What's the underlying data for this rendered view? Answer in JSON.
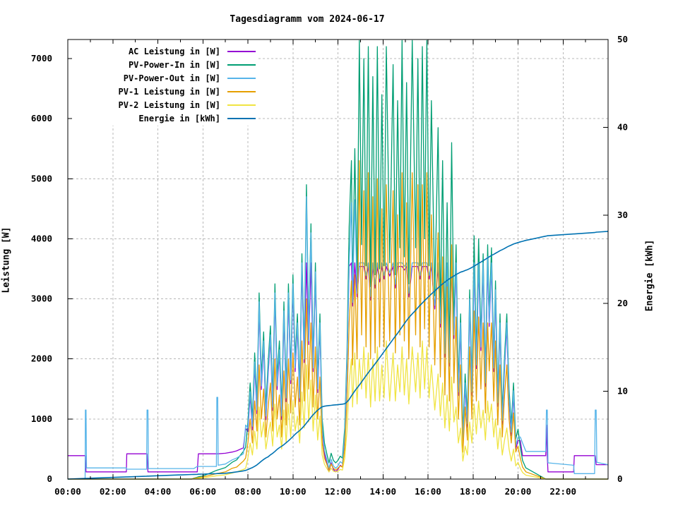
{
  "chart_data": {
    "type": "line",
    "title": "Tagesdiagramm vom 2024-06-17",
    "ylabel_left": "Leistung [W]",
    "ylabel_right": "Energie [kWh]",
    "xlim": [
      0,
      24
    ],
    "ylim_left": [
      0,
      7317
    ],
    "ylim_right": [
      0,
      50
    ],
    "grid": true,
    "legend_position": "top-left",
    "background": "#ffffff",
    "border_color": "#000000",
    "grid_color": "#b8b8b8",
    "x_tick_hours": [
      0,
      2,
      4,
      6,
      8,
      10,
      12,
      14,
      16,
      18,
      20,
      22
    ],
    "x_tick_labels": [
      "00:00",
      "02:00",
      "04:00",
      "06:00",
      "08:00",
      "10:00",
      "12:00",
      "14:00",
      "16:00",
      "18:00",
      "20:00",
      "22:00"
    ],
    "x_minor_tick_hours": [
      1,
      3,
      5,
      7,
      9,
      11,
      13,
      15,
      17,
      19,
      21,
      23
    ],
    "x_grid_hours": [
      2,
      4,
      6,
      8,
      10,
      12,
      14,
      16,
      18,
      20,
      22,
      24
    ],
    "y_left_ticks": [
      0,
      1000,
      2000,
      3000,
      4000,
      5000,
      6000,
      7000
    ],
    "y_right_ticks": [
      0,
      10,
      20,
      30,
      40,
      50
    ],
    "t": [
      0,
      0.77,
      0.78,
      0.81,
      0.83,
      2.6,
      2.62,
      2.65,
      3.5,
      3.52,
      3.56,
      3.58,
      5.5,
      5.6,
      5.75,
      5.8,
      6.0,
      6.3,
      6.6,
      6.62,
      6.66,
      6.68,
      7.0,
      7.3,
      7.5,
      7.8,
      7.9,
      8.0,
      8.1,
      8.2,
      8.3,
      8.4,
      8.5,
      8.6,
      8.7,
      8.8,
      8.9,
      9.0,
      9.1,
      9.2,
      9.3,
      9.4,
      9.5,
      9.6,
      9.7,
      9.8,
      9.9,
      10.0,
      10.1,
      10.2,
      10.3,
      10.4,
      10.5,
      10.6,
      10.7,
      10.8,
      10.9,
      11.0,
      11.1,
      11.2,
      11.3,
      11.4,
      11.5,
      11.6,
      11.7,
      11.8,
      11.9,
      12.0,
      12.1,
      12.2,
      12.3,
      12.4,
      12.5,
      12.6,
      12.65,
      12.75,
      12.85,
      12.95,
      13.05,
      13.15,
      13.25,
      13.35,
      13.45,
      13.55,
      13.65,
      13.75,
      13.85,
      13.95,
      14.05,
      14.15,
      14.3,
      14.45,
      14.55,
      14.65,
      14.75,
      14.85,
      14.95,
      15.05,
      15.15,
      15.3,
      15.45,
      15.55,
      15.65,
      15.75,
      15.85,
      15.95,
      16.05,
      16.15,
      16.3,
      16.45,
      16.55,
      16.65,
      16.75,
      16.85,
      16.95,
      17.05,
      17.15,
      17.25,
      17.35,
      17.45,
      17.55,
      17.65,
      17.75,
      17.85,
      17.95,
      18.05,
      18.15,
      18.25,
      18.35,
      18.45,
      18.55,
      18.65,
      18.72,
      18.82,
      18.92,
      19.0,
      19.1,
      19.2,
      19.3,
      19.4,
      19.5,
      19.6,
      19.7,
      19.8,
      19.9,
      20.0,
      20.1,
      20.2,
      20.33,
      20.35,
      21.23,
      21.26,
      21.3,
      21.33,
      22.47,
      22.5,
      23.4,
      23.43,
      23.47,
      23.5,
      24.0
    ],
    "series": [
      {
        "id": "ac",
        "label": "AC Leistung in [W]",
        "color": "#9400d3",
        "axis": "left",
        "width": 1.3,
        "values": [
          390,
          390,
          390,
          120,
          120,
          120,
          420,
          420,
          420,
          420,
          120,
          120,
          120,
          120,
          120,
          420,
          420,
          420,
          420,
          420,
          420,
          420,
          430,
          450,
          470,
          520,
          840,
          790,
          1390,
          820,
          1890,
          1090,
          2890,
          1490,
          2240,
          990,
          1740,
          2340,
          1140,
          3040,
          1490,
          2090,
          990,
          2740,
          1290,
          3040,
          1590,
          3190,
          1790,
          2540,
          1290,
          3540,
          1940,
          3600,
          2240,
          3600,
          1790,
          3390,
          1440,
          2540,
          810,
          420,
          270,
          120,
          270,
          160,
          120,
          160,
          230,
          200,
          680,
          1890,
          3540,
          3600,
          2880,
          3600,
          3030,
          3540,
          3540,
          3540,
          3330,
          3540,
          2980,
          3540,
          3180,
          3540,
          3280,
          3540,
          3330,
          3540,
          3380,
          3540,
          3180,
          3540,
          3540,
          3540,
          3480,
          3540,
          3030,
          3540,
          3540,
          3540,
          3330,
          3540,
          3540,
          3540,
          3330,
          3540,
          2830,
          3540,
          2530,
          3540,
          2030,
          3540,
          1880,
          3540,
          2340,
          3540,
          1390,
          2540,
          560,
          1540,
          860,
          2940,
          1390,
          3540,
          1840,
          3540,
          2140,
          3540,
          1540,
          3600,
          2540,
          3540,
          1790,
          3090,
          1210,
          2540,
          910,
          1840,
          2540,
          1310,
          720,
          1410,
          500,
          640,
          640,
          390,
          390,
          390,
          390,
          900,
          390,
          120,
          120,
          390,
          390,
          390,
          240,
          240,
          240
        ]
      },
      {
        "id": "pv_in",
        "label": "PV-Power-In in [W]",
        "color": "#009e73",
        "axis": "left",
        "width": 1.3,
        "values": [
          0,
          0,
          0,
          0,
          0,
          0,
          0,
          0,
          0,
          0,
          0,
          0,
          0,
          15,
          30,
          37,
          53,
          95,
          145,
          145,
          153,
          153,
          190,
          280,
          320,
          460,
          530,
          950,
          1600,
          1000,
          2100,
          1300,
          3100,
          1700,
          2450,
          1200,
          1950,
          2550,
          1350,
          3250,
          1700,
          2300,
          1200,
          2950,
          1500,
          3250,
          1800,
          3400,
          2000,
          2750,
          1500,
          3750,
          2150,
          4900,
          2450,
          4250,
          2000,
          3600,
          1650,
          2750,
          1000,
          600,
          430,
          270,
          430,
          310,
          270,
          310,
          380,
          350,
          850,
          2100,
          4200,
          5300,
          3100,
          5500,
          3250,
          7300,
          3900,
          7000,
          3550,
          7200,
          3200,
          6700,
          3400,
          7200,
          3500,
          6400,
          3550,
          7200,
          3600,
          6900,
          3400,
          6300,
          3850,
          7300,
          3700,
          6600,
          3250,
          7300,
          3850,
          7000,
          3550,
          7200,
          4000,
          7300,
          3550,
          6300,
          3050,
          5850,
          2750,
          5300,
          2250,
          4600,
          2100,
          5600,
          2550,
          3900,
          1600,
          2750,
          750,
          1750,
          1050,
          3150,
          1600,
          4050,
          2050,
          4000,
          2350,
          3750,
          1750,
          3900,
          2750,
          3850,
          2000,
          3300,
          1400,
          2750,
          1100,
          2050,
          2750,
          1500,
          900,
          1600,
          670,
          830,
          530,
          310,
          200,
          185,
          0,
          0,
          0,
          0,
          0,
          0,
          0,
          0,
          0,
          0,
          0
        ]
      },
      {
        "id": "pv_out",
        "label": "PV-Power-Out in [W]",
        "color": "#56b4e9",
        "axis": "left",
        "width": 1.3,
        "values": [
          0,
          0,
          1150,
          1150,
          185,
          185,
          165,
          165,
          165,
          1150,
          1150,
          175,
          175,
          175,
          210,
          210,
          210,
          210,
          210,
          1360,
          1360,
          230,
          250,
          320,
          350,
          420,
          900,
          850,
          1450,
          880,
          1950,
          1150,
          2950,
          1550,
          2300,
          1050,
          1800,
          2400,
          1200,
          3100,
          1550,
          2150,
          1050,
          2800,
          1350,
          3100,
          1650,
          3250,
          1850,
          2600,
          1350,
          3600,
          2000,
          4700,
          2300,
          4100,
          1850,
          3450,
          1500,
          2600,
          870,
          480,
          330,
          180,
          330,
          220,
          180,
          220,
          290,
          260,
          740,
          1950,
          3600,
          4600,
          2940,
          4650,
          3090,
          3600,
          3600,
          3600,
          3390,
          3600,
          3040,
          3600,
          3240,
          3600,
          3340,
          3600,
          3390,
          3600,
          3440,
          3600,
          3240,
          3600,
          3600,
          3600,
          3540,
          3600,
          3090,
          3600,
          3600,
          3600,
          3390,
          3600,
          3600,
          3600,
          3390,
          3600,
          2890,
          3600,
          2590,
          3600,
          2090,
          3600,
          1940,
          3600,
          2400,
          3600,
          1450,
          2600,
          620,
          1600,
          920,
          3000,
          1450,
          3600,
          1900,
          3600,
          2200,
          3600,
          1600,
          3700,
          2600,
          3600,
          1850,
          3150,
          1270,
          2600,
          970,
          1900,
          2600,
          1370,
          780,
          1470,
          560,
          700,
          700,
          600,
          480,
          460,
          460,
          1150,
          1150,
          270,
          230,
          90,
          90,
          1150,
          1150,
          280,
          240
        ]
      },
      {
        "id": "pv1",
        "label": "PV-1 Leistung in [W]",
        "color": "#e69f00",
        "axis": "left",
        "width": 1.3,
        "values": [
          0,
          0,
          0,
          0,
          0,
          0,
          0,
          0,
          0,
          0,
          0,
          0,
          0,
          10,
          20,
          25,
          35,
          60,
          90,
          90,
          95,
          95,
          120,
          180,
          200,
          300,
          350,
          600,
          1000,
          600,
          1300,
          800,
          1900,
          1000,
          1500,
          700,
          1200,
          1600,
          800,
          2000,
          1000,
          1400,
          700,
          1800,
          900,
          2000,
          1100,
          2100,
          1200,
          1700,
          900,
          2300,
          1300,
          3000,
          1500,
          2600,
          1200,
          2200,
          1000,
          1700,
          600,
          350,
          250,
          150,
          250,
          180,
          150,
          180,
          220,
          200,
          500,
          1300,
          2600,
          3300,
          1900,
          3400,
          2000,
          5300,
          2400,
          4800,
          2200,
          5100,
          2000,
          4700,
          2100,
          5000,
          2200,
          4500,
          2200,
          4900,
          2300,
          4800,
          2100,
          4400,
          2400,
          5100,
          2300,
          4600,
          2000,
          5100,
          2400,
          4900,
          2200,
          4900,
          2500,
          5100,
          2200,
          4400,
          1900,
          4100,
          1700,
          3700,
          1400,
          3200,
          1300,
          3900,
          1600,
          2700,
          1000,
          1900,
          450,
          1200,
          650,
          2200,
          1000,
          2800,
          1300,
          2700,
          1500,
          2600,
          1100,
          2600,
          1800,
          2600,
          1300,
          2300,
          900,
          1900,
          700,
          1400,
          1900,
          1000,
          600,
          1100,
          450,
          550,
          350,
          200,
          130,
          120,
          0,
          0,
          0,
          0,
          0,
          0,
          0,
          0,
          0,
          0,
          0
        ]
      },
      {
        "id": "pv2",
        "label": "PV-2 Leistung in [W]",
        "color": "#f0e442",
        "axis": "left",
        "width": 1.3,
        "values": [
          0,
          0,
          0,
          0,
          0,
          0,
          0,
          0,
          0,
          0,
          0,
          0,
          0,
          5,
          10,
          12,
          18,
          35,
          55,
          55,
          58,
          58,
          70,
          100,
          120,
          160,
          180,
          350,
          600,
          400,
          800,
          500,
          1200,
          700,
          950,
          500,
          750,
          950,
          550,
          1250,
          700,
          900,
          500,
          1150,
          600,
          1250,
          700,
          1300,
          800,
          1050,
          600,
          1450,
          850,
          1900,
          950,
          1650,
          800,
          1400,
          650,
          1050,
          400,
          250,
          180,
          120,
          180,
          130,
          120,
          130,
          160,
          150,
          350,
          800,
          1600,
          2000,
          1200,
          2100,
          1250,
          2000,
          1500,
          2200,
          1350,
          2100,
          1200,
          2000,
          1300,
          2200,
          1300,
          1900,
          1350,
          2300,
          1300,
          2100,
          1300,
          1900,
          1450,
          2200,
          1400,
          2000,
          1250,
          2200,
          1450,
          2100,
          1350,
          2300,
          1500,
          2200,
          1350,
          1900,
          1150,
          1750,
          1050,
          1600,
          850,
          1400,
          800,
          1700,
          950,
          1200,
          600,
          850,
          300,
          550,
          400,
          950,
          600,
          1250,
          750,
          1300,
          850,
          1150,
          650,
          1300,
          950,
          1250,
          700,
          1000,
          500,
          850,
          400,
          650,
          850,
          500,
          300,
          500,
          220,
          280,
          180,
          110,
          70,
          65,
          0,
          0,
          0,
          0,
          0,
          0,
          0,
          0,
          0,
          0,
          0
        ]
      },
      {
        "id": "energy",
        "label": "Energie in [kWh]",
        "color": "#0072b2",
        "axis": "right",
        "width": 1.6,
        "values": [
          0,
          0.07,
          0.07,
          0.08,
          0.08,
          0.25,
          0.25,
          0.25,
          0.33,
          0.34,
          0.34,
          0.34,
          0.52,
          0.53,
          0.54,
          0.55,
          0.56,
          0.59,
          0.62,
          0.63,
          0.63,
          0.63,
          0.66,
          0.75,
          0.82,
          0.93,
          0.99,
          1.08,
          1.2,
          1.31,
          1.45,
          1.61,
          1.81,
          2.04,
          2.23,
          2.4,
          2.54,
          2.75,
          2.93,
          3.15,
          3.38,
          3.57,
          3.73,
          3.92,
          4.13,
          4.35,
          4.59,
          4.84,
          5.1,
          5.32,
          5.52,
          5.77,
          6.05,
          6.37,
          6.7,
          7.02,
          7.32,
          7.59,
          7.84,
          8.05,
          8.22,
          8.29,
          8.33,
          8.36,
          8.39,
          8.42,
          8.44,
          8.46,
          8.49,
          8.52,
          8.57,
          8.77,
          9.05,
          9.46,
          9.65,
          10.03,
          10.36,
          10.69,
          11.05,
          11.41,
          11.76,
          12.11,
          12.44,
          12.77,
          13.11,
          13.45,
          13.8,
          14.15,
          14.5,
          14.85,
          15.38,
          15.91,
          16.25,
          16.59,
          16.95,
          17.31,
          17.67,
          18.03,
          18.37,
          18.8,
          19.2,
          19.5,
          19.77,
          20.03,
          20.3,
          20.55,
          20.8,
          21.05,
          21.4,
          21.75,
          21.98,
          22.2,
          22.4,
          22.6,
          22.78,
          22.95,
          23.1,
          23.27,
          23.4,
          23.54,
          23.62,
          23.72,
          23.81,
          23.94,
          24.07,
          24.22,
          24.37,
          24.54,
          24.69,
          24.85,
          25.0,
          25.17,
          25.28,
          25.43,
          25.57,
          25.68,
          25.83,
          25.98,
          26.1,
          26.23,
          26.38,
          26.51,
          26.61,
          26.73,
          26.82,
          26.9,
          26.98,
          27.05,
          27.14,
          27.15,
          27.63,
          27.65,
          27.67,
          27.68,
          27.88,
          27.88,
          28.04,
          28.06,
          28.08,
          28.09,
          28.18
        ]
      }
    ]
  }
}
